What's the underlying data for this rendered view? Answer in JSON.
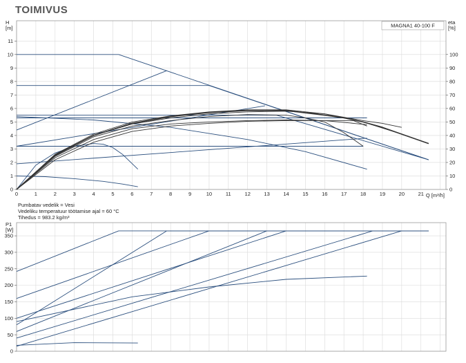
{
  "page": {
    "title": "TOIMIVUS"
  },
  "notes": [
    "Pumbatav vedelik = Vesi",
    "Vedeliku temperatuur töötamise ajal = 60 °C",
    "Tihedus = 983.2 kg/m³"
  ],
  "colors": {
    "curve": "#2b4f7e",
    "efficiency": "#333333",
    "grid": "#d9d9d9",
    "frame": "#999999"
  },
  "chart_data": [
    {
      "type": "line",
      "title": "",
      "model_label": "MAGNA1 40-100 F",
      "ylabel": "H\n[m]",
      "y2label": "eta\n[%]",
      "xlabel": "Q [m³/h]",
      "xlim": [
        0,
        22.3
      ],
      "ylim": [
        0,
        12.5
      ],
      "y2lim": [
        0,
        125
      ],
      "x_ticks": [
        0,
        1,
        2,
        3,
        4,
        5,
        6,
        7,
        8,
        9,
        10,
        11,
        12,
        13,
        14,
        15,
        16,
        17,
        18,
        19,
        20,
        21
      ],
      "y_ticks": [
        0,
        1,
        2,
        3,
        4,
        5,
        6,
        7,
        8,
        9,
        10,
        11
      ],
      "y2_ticks": [
        0,
        10,
        20,
        30,
        40,
        50,
        60,
        70,
        80,
        90,
        100
      ],
      "grid": true,
      "series": [
        {
          "x": [
            0,
            5.3,
            21.4
          ],
          "y": [
            10,
            10,
            2.2
          ]
        },
        {
          "x": [
            0,
            10,
            21.4
          ],
          "y": [
            7.7,
            7.7,
            2.2
          ]
        },
        {
          "x": [
            0,
            13.5,
            21.4
          ],
          "y": [
            5.5,
            5.5,
            2.2
          ]
        },
        {
          "x": [
            0,
            18.2
          ],
          "y": [
            5.3,
            5.3
          ]
        },
        {
          "x": [
            0,
            18
          ],
          "y": [
            3.2,
            3.2
          ]
        },
        {
          "x": [
            0,
            7.8
          ],
          "y": [
            4.4,
            8.8
          ]
        },
        {
          "x": [
            0,
            12.9
          ],
          "y": [
            3.2,
            6.2
          ]
        },
        {
          "x": [
            0,
            18.2
          ],
          "y": [
            1.9,
            3.8
          ]
        },
        {
          "x": [
            0,
            4,
            8,
            12,
            15,
            18.2
          ],
          "y": [
            5.4,
            5.15,
            4.6,
            3.7,
            2.8,
            1.5
          ]
        },
        {
          "x": [
            0,
            1.5,
            3,
            4.5,
            5.5,
            6.3
          ],
          "y": [
            1,
            0.95,
            0.8,
            0.6,
            0.4,
            0.2
          ]
        },
        {
          "x": [
            0,
            1,
            2,
            3,
            4,
            4.5,
            5,
            5.5,
            6.3
          ],
          "y": [
            0,
            1.8,
            2.7,
            3.2,
            3.4,
            3.35,
            3.1,
            2.6,
            1.5
          ]
        },
        {
          "x": [
            0,
            2,
            4,
            6,
            8,
            10,
            12,
            14,
            15,
            16,
            17,
            18
          ],
          "y": [
            0,
            2.45,
            3.9,
            4.7,
            5.1,
            5.4,
            5.55,
            5.5,
            5.3,
            5.0,
            4.2,
            3.2
          ]
        },
        {
          "x": [
            0,
            2,
            4,
            6,
            8,
            10,
            12,
            14,
            16,
            17.5,
            18.2
          ],
          "y": [
            0,
            2.35,
            3.7,
            4.5,
            4.85,
            5.0,
            5.1,
            5.15,
            5.1,
            4.9,
            4.8
          ]
        },
        {
          "x": [
            0,
            2,
            4,
            6,
            8,
            10,
            12,
            14,
            16,
            17.5,
            18.2
          ],
          "y": [
            0,
            2.2,
            3.5,
            4.3,
            4.7,
            4.9,
            5.05,
            5.1,
            5.1,
            5.1,
            4.7
          ]
        },
        {
          "x": [
            0,
            2,
            4,
            6,
            8,
            10,
            12,
            14,
            16,
            18,
            19,
            20
          ],
          "y": [
            0,
            2.5,
            4.0,
            4.85,
            5.3,
            5.6,
            5.75,
            5.8,
            5.6,
            5.1,
            4.9,
            4.6
          ]
        },
        {
          "x": [
            0,
            2,
            4,
            6,
            8,
            10,
            12,
            14,
            16,
            18,
            20,
            21.4
          ],
          "y": [
            0,
            2.6,
            4.1,
            5.0,
            5.45,
            5.75,
            5.9,
            5.9,
            5.6,
            5.0,
            4.1,
            3.4
          ]
        },
        {
          "x": [
            0,
            2,
            4,
            6,
            8,
            10,
            12,
            14,
            16,
            17,
            18,
            19,
            20,
            21.4
          ],
          "y": [
            0,
            2.55,
            4.0,
            4.9,
            5.4,
            5.7,
            5.85,
            5.85,
            5.5,
            5.3,
            5.0,
            4.6,
            4.1,
            3.4
          ]
        }
      ]
    },
    {
      "type": "line",
      "title": "",
      "ylabel": "P1\n[W]",
      "xlim": [
        0,
        22.3
      ],
      "ylim": [
        0,
        390
      ],
      "y_ticks": [
        0,
        50,
        100,
        150,
        200,
        250,
        300,
        350
      ],
      "grid": true,
      "series": [
        {
          "x": [
            0,
            5.3,
            21.4
          ],
          "y": [
            242,
            365,
            365
          ]
        },
        {
          "x": [
            0,
            10,
            21.4
          ],
          "y": [
            160,
            365,
            365
          ]
        },
        {
          "x": [
            0,
            7.8,
            21.4
          ],
          "y": [
            80,
            365,
            365
          ]
        },
        {
          "x": [
            0,
            13,
            21.4
          ],
          "y": [
            60,
            365,
            365
          ]
        },
        {
          "x": [
            0,
            14,
            21.4
          ],
          "y": [
            100,
            365,
            365
          ]
        },
        {
          "x": [
            0,
            18.5,
            21.4
          ],
          "y": [
            40,
            365,
            365
          ]
        },
        {
          "x": [
            0,
            20,
            21.4
          ],
          "y": [
            15,
            365,
            365
          ]
        },
        {
          "x": [
            0,
            6,
            10,
            14,
            18.2
          ],
          "y": [
            90,
            165,
            195,
            218,
            228
          ]
        },
        {
          "x": [
            0,
            3,
            6.3
          ],
          "y": [
            18,
            26,
            25
          ]
        }
      ]
    }
  ]
}
